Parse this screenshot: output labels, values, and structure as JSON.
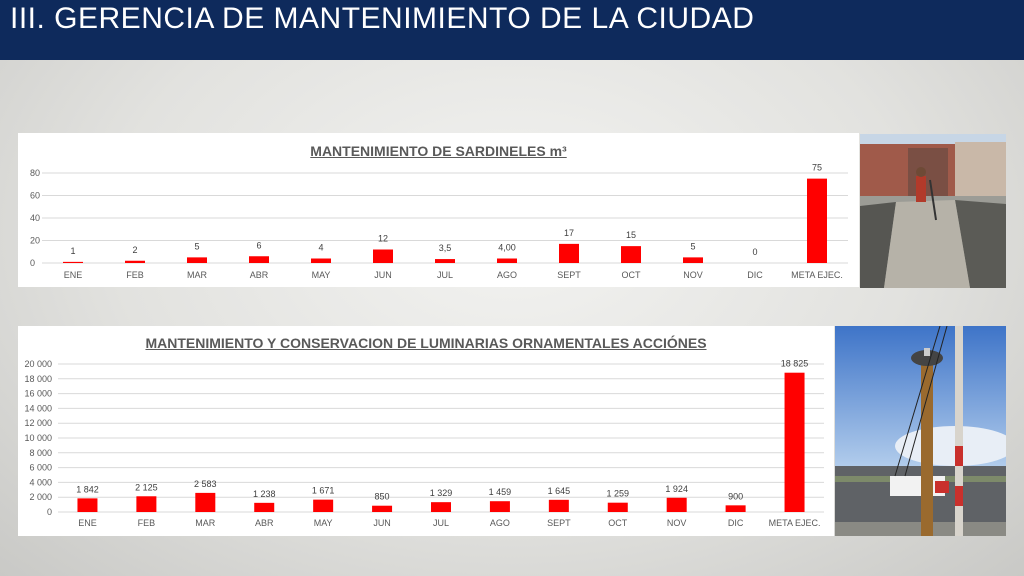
{
  "header": {
    "title": "III. GERENCIA DE MANTENIMIENTO DE LA CIUDAD"
  },
  "colors": {
    "header_bg": "#0e2a5c",
    "bar": "#ff0000",
    "grid": "#d9d9d9",
    "text": "#595959"
  },
  "chart_data": [
    {
      "type": "bar",
      "title": "MANTENIMIENTO DE SARDINELES m³",
      "categories": [
        "ENE",
        "FEB",
        "MAR",
        "ABR",
        "MAY",
        "JUN",
        "JUL",
        "AGO",
        "SEPT",
        "OCT",
        "NOV",
        "DIC",
        "META EJEC."
      ],
      "values": [
        1,
        2,
        5,
        6,
        4,
        12,
        3.5,
        4,
        17,
        15,
        5,
        0,
        75
      ],
      "data_labels": [
        "1",
        "2",
        "5",
        "6",
        "4",
        "12",
        "3,5",
        "4,00",
        "17",
        "15",
        "5",
        "0",
        "75"
      ],
      "ylim": [
        0,
        80
      ],
      "yticks": [
        0,
        20,
        40,
        60,
        80
      ],
      "ytick_labels": [
        "0",
        "20",
        "40",
        "60",
        "80"
      ],
      "grid": true,
      "legend": "none"
    },
    {
      "type": "bar",
      "title": "MANTENIMIENTO Y CONSERVACION DE LUMINARIAS ORNAMENTALES ACCIÓNES",
      "categories": [
        "ENE",
        "FEB",
        "MAR",
        "ABR",
        "MAY",
        "JUN",
        "JUL",
        "AGO",
        "SEPT",
        "OCT",
        "NOV",
        "DIC",
        "META EJEC."
      ],
      "values": [
        1842,
        2125,
        2583,
        1238,
        1671,
        850,
        1329,
        1459,
        1645,
        1259,
        1924,
        900,
        18825
      ],
      "data_labels": [
        "1 842",
        "2 125",
        "2 583",
        "1 238",
        "1 671",
        "850",
        "1 329",
        "1 459",
        "1 645",
        "1 259",
        "1 924",
        "900",
        "18 825"
      ],
      "ylim": [
        0,
        20000
      ],
      "yticks": [
        0,
        2000,
        4000,
        6000,
        8000,
        10000,
        12000,
        14000,
        16000,
        18000,
        20000
      ],
      "ytick_labels": [
        "0",
        "2 000",
        "4 000",
        "6 000",
        "8 000",
        "10 000",
        "12 000",
        "14 000",
        "16 000",
        "18 000",
        "20 000"
      ],
      "grid": true,
      "legend": "none"
    }
  ]
}
